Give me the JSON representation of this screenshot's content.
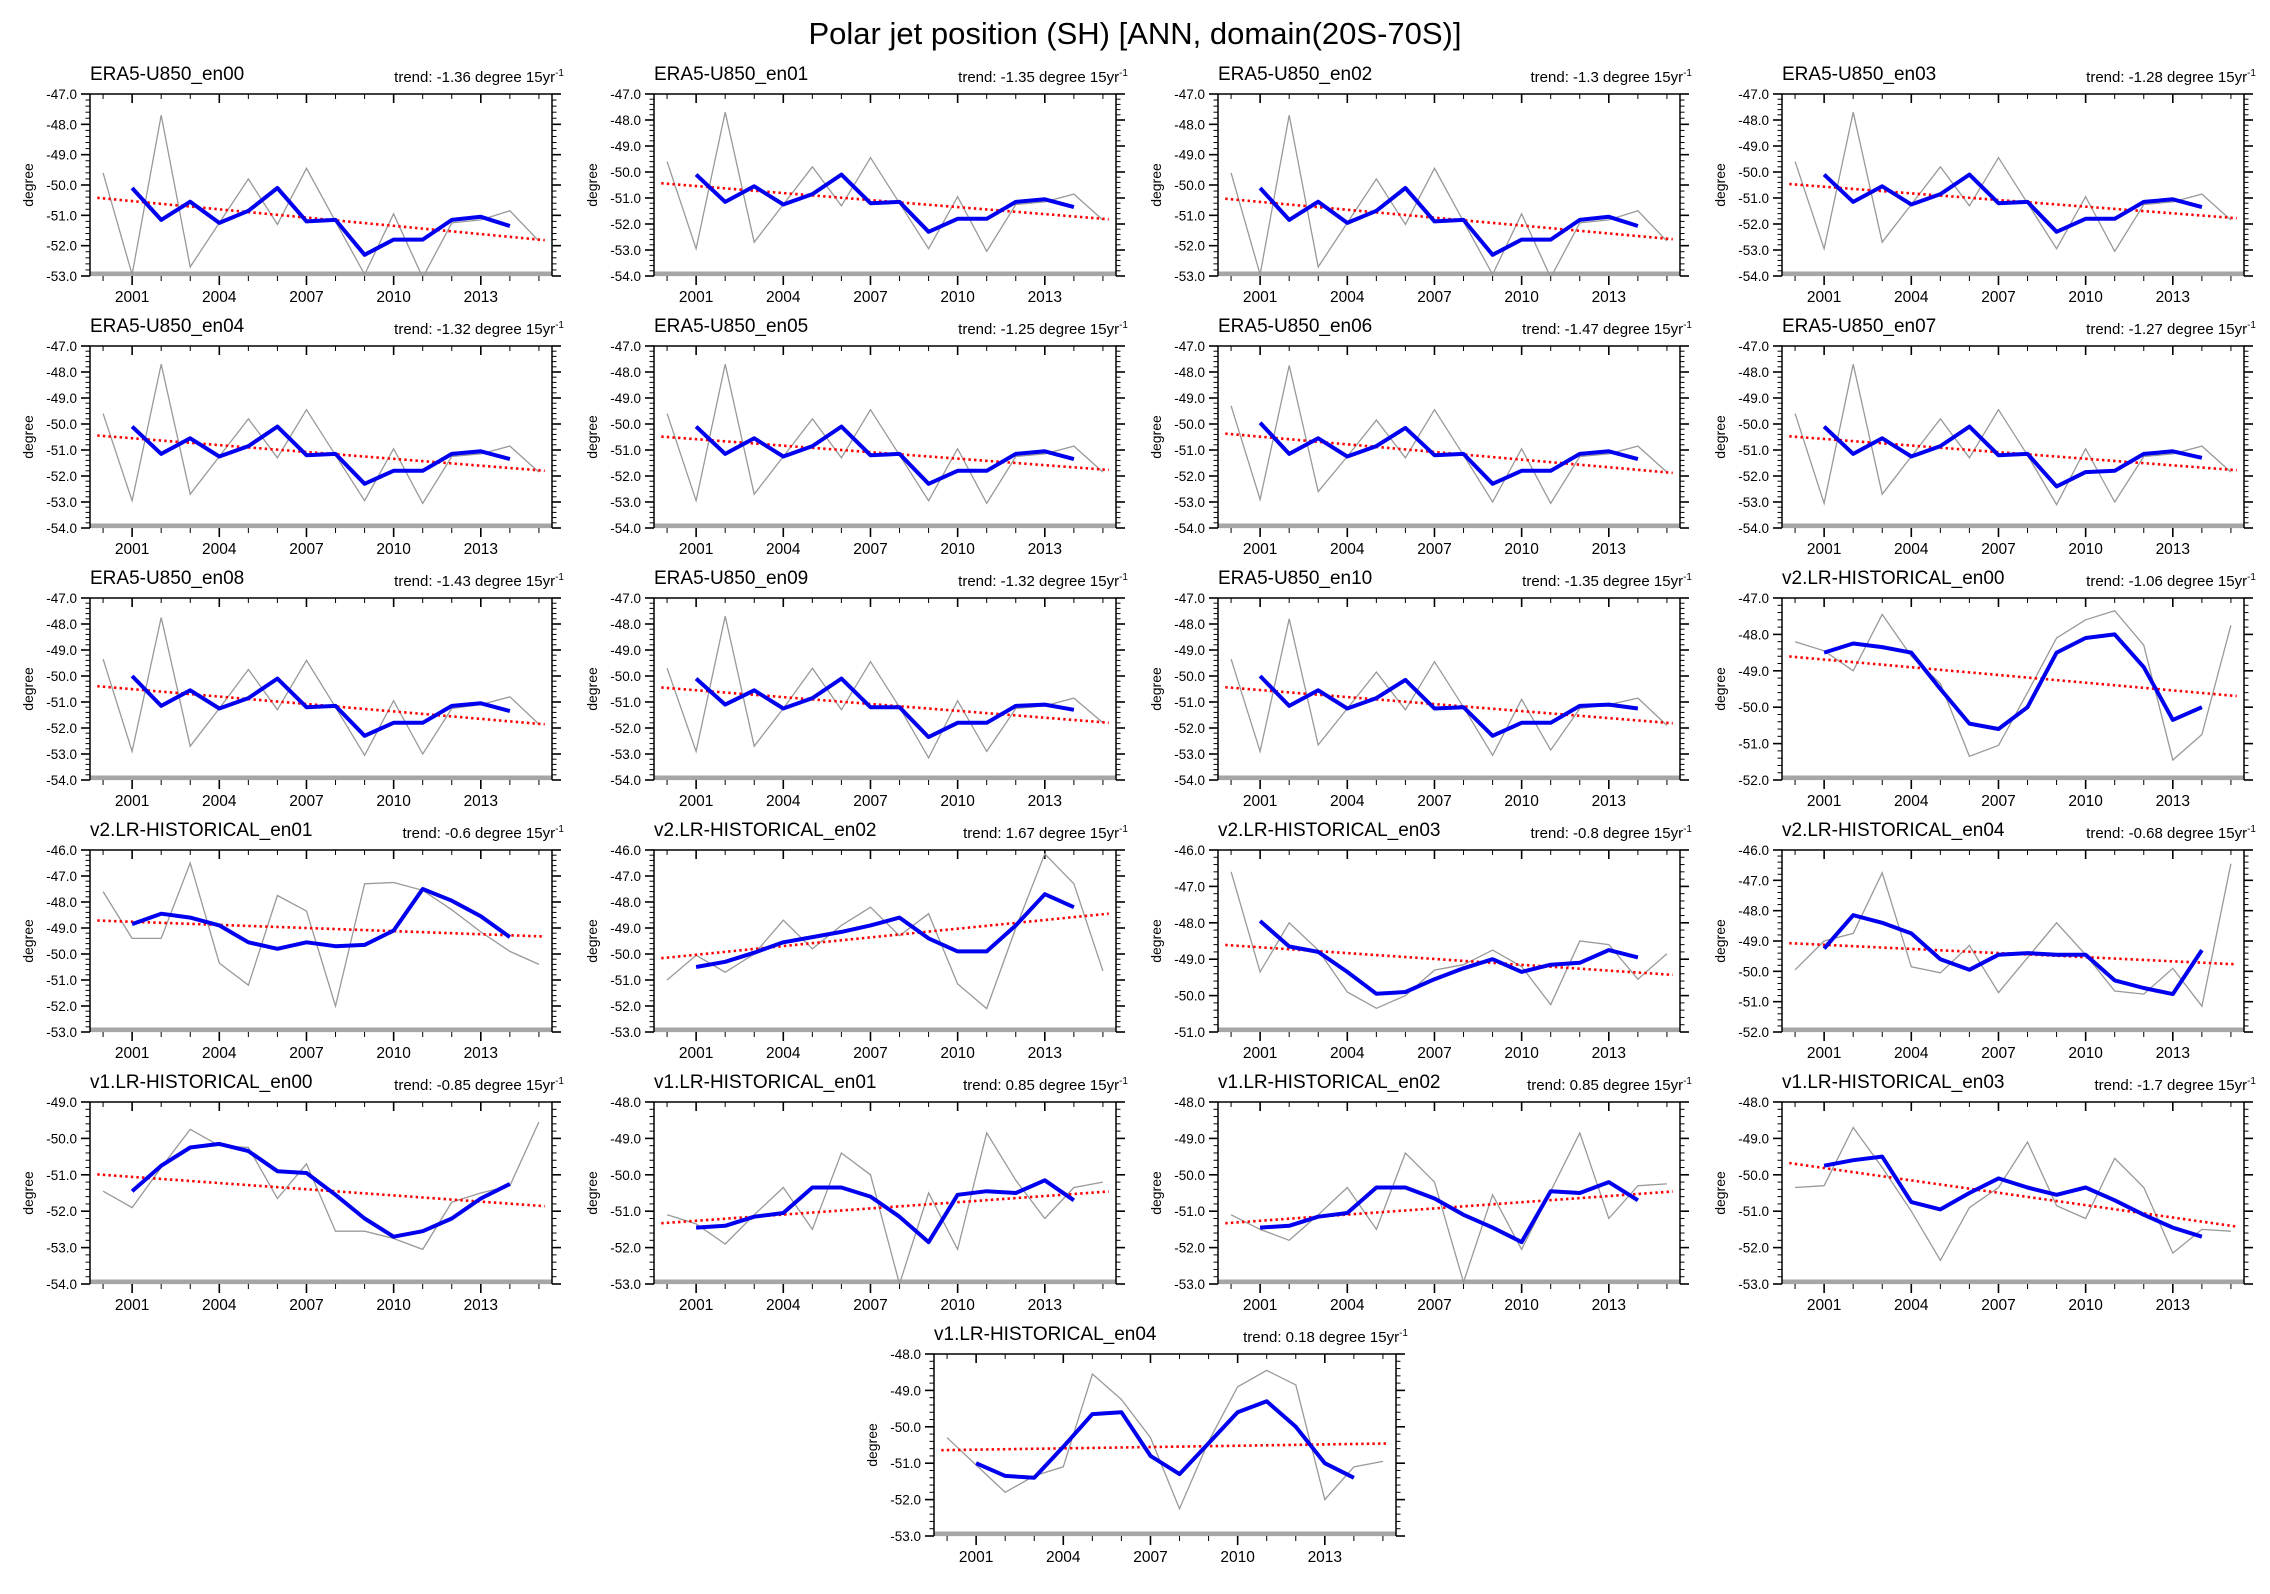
{
  "title": "Polar jet position (SH) [ANN, domain(20S-70S)]",
  "axes": {
    "ylabel": "degree",
    "x_major_ticks": [
      2001,
      2004,
      2007,
      2010,
      2013
    ],
    "x_range": [
      2000,
      2015
    ],
    "trend_prefix": "trend:",
    "trend_unit": "degree 15yr",
    "trend_sup": "-1"
  },
  "colors": {
    "annual_line": "#999999",
    "smoothed_line": "#0000ee",
    "trend_line": "#ff0000",
    "axis": "#000000",
    "baseline_band": "#a6a6a6"
  },
  "chart_data": [
    {
      "type": "line",
      "title": "ERA5-U850_en00",
      "trend": "-1.36",
      "ylim": [
        -53,
        -47
      ],
      "annual_start_year": 2000,
      "annual": [
        -49.6,
        -52.95,
        -47.7,
        -52.7,
        -51.25,
        -49.8,
        -51.3,
        -49.45,
        -51.2,
        -52.95,
        -50.95,
        -53.05,
        -51.25,
        -51.15,
        -50.85,
        -51.85
      ],
      "smoothed_start_year": 2001,
      "smoothed": [
        -50.1,
        -51.15,
        -50.55,
        -51.25,
        -50.85,
        -50.1,
        -51.2,
        -51.15,
        -52.3,
        -51.8,
        -51.8,
        -51.15,
        -51.05,
        -51.35
      ],
      "trend_endpoints": [
        -50.44,
        -51.8
      ]
    },
    {
      "type": "line",
      "title": "ERA5-U850_en01",
      "trend": "-1.35",
      "ylim": [
        -54,
        -47
      ],
      "annual_start_year": 2000,
      "annual": [
        -49.6,
        -52.95,
        -47.7,
        -52.7,
        -51.25,
        -49.8,
        -51.3,
        -49.45,
        -51.2,
        -52.95,
        -50.95,
        -53.05,
        -51.25,
        -51.15,
        -50.85,
        -51.85
      ],
      "smoothed_start_year": 2001,
      "smoothed": [
        -50.1,
        -51.15,
        -50.55,
        -51.25,
        -50.85,
        -50.1,
        -51.2,
        -51.15,
        -52.3,
        -51.8,
        -51.8,
        -51.15,
        -51.05,
        -51.35
      ],
      "trend_endpoints": [
        -50.45,
        -51.8
      ]
    },
    {
      "type": "line",
      "title": "ERA5-U850_en02",
      "trend": "-1.3",
      "ylim": [
        -53,
        -47
      ],
      "annual_start_year": 2000,
      "annual": [
        -49.6,
        -52.95,
        -47.7,
        -52.7,
        -51.25,
        -49.8,
        -51.3,
        -49.45,
        -51.2,
        -52.95,
        -50.95,
        -53.05,
        -51.25,
        -51.15,
        -50.85,
        -51.85
      ],
      "smoothed_start_year": 2001,
      "smoothed": [
        -50.1,
        -51.15,
        -50.55,
        -51.25,
        -50.85,
        -50.1,
        -51.2,
        -51.15,
        -52.3,
        -51.8,
        -51.8,
        -51.15,
        -51.05,
        -51.35
      ],
      "trend_endpoints": [
        -50.47,
        -51.77
      ]
    },
    {
      "type": "line",
      "title": "ERA5-U850_en03",
      "trend": "-1.28",
      "ylim": [
        -54,
        -47
      ],
      "annual_start_year": 2000,
      "annual": [
        -49.6,
        -52.95,
        -47.7,
        -52.7,
        -51.25,
        -49.8,
        -51.3,
        -49.45,
        -51.2,
        -52.95,
        -50.95,
        -53.05,
        -51.25,
        -51.15,
        -50.85,
        -51.85
      ],
      "smoothed_start_year": 2001,
      "smoothed": [
        -50.1,
        -51.15,
        -50.55,
        -51.25,
        -50.85,
        -50.1,
        -51.2,
        -51.15,
        -52.3,
        -51.8,
        -51.8,
        -51.15,
        -51.05,
        -51.35
      ],
      "trend_endpoints": [
        -50.48,
        -51.76
      ]
    },
    {
      "type": "line",
      "title": "ERA5-U850_en04",
      "trend": "-1.32",
      "ylim": [
        -54,
        -47
      ],
      "annual_start_year": 2000,
      "annual": [
        -49.6,
        -52.95,
        -47.7,
        -52.7,
        -51.25,
        -49.8,
        -51.3,
        -49.45,
        -51.2,
        -52.95,
        -50.95,
        -53.05,
        -51.25,
        -51.15,
        -50.85,
        -51.85
      ],
      "smoothed_start_year": 2001,
      "smoothed": [
        -50.1,
        -51.15,
        -50.55,
        -51.25,
        -50.85,
        -50.1,
        -51.2,
        -51.15,
        -52.3,
        -51.8,
        -51.8,
        -51.15,
        -51.05,
        -51.35
      ],
      "trend_endpoints": [
        -50.46,
        -51.78
      ]
    },
    {
      "type": "line",
      "title": "ERA5-U850_en05",
      "trend": "-1.25",
      "ylim": [
        -54,
        -47
      ],
      "annual_start_year": 2000,
      "annual": [
        -49.6,
        -52.95,
        -47.7,
        -52.7,
        -51.25,
        -49.8,
        -51.3,
        -49.45,
        -51.2,
        -52.95,
        -50.95,
        -53.05,
        -51.25,
        -51.15,
        -50.85,
        -51.85
      ],
      "smoothed_start_year": 2001,
      "smoothed": [
        -50.1,
        -51.15,
        -50.55,
        -51.25,
        -50.85,
        -50.1,
        -51.2,
        -51.15,
        -52.3,
        -51.8,
        -51.8,
        -51.15,
        -51.05,
        -51.35
      ],
      "trend_endpoints": [
        -50.5,
        -51.75
      ]
    },
    {
      "type": "line",
      "title": "ERA5-U850_en06",
      "trend": "-1.47",
      "ylim": [
        -54,
        -47
      ],
      "annual_start_year": 2000,
      "annual": [
        -49.3,
        -52.9,
        -47.75,
        -52.6,
        -51.25,
        -49.85,
        -51.3,
        -49.45,
        -51.2,
        -53.0,
        -50.95,
        -53.05,
        -51.25,
        -51.15,
        -50.85,
        -51.85
      ],
      "smoothed_start_year": 2001,
      "smoothed": [
        -49.95,
        -51.15,
        -50.55,
        -51.25,
        -50.85,
        -50.15,
        -51.2,
        -51.15,
        -52.3,
        -51.8,
        -51.8,
        -51.15,
        -51.05,
        -51.35
      ],
      "trend_endpoints": [
        -50.39,
        -51.86
      ]
    },
    {
      "type": "line",
      "title": "ERA5-U850_en07",
      "trend": "-1.27",
      "ylim": [
        -54,
        -47
      ],
      "annual_start_year": 2000,
      "annual": [
        -49.6,
        -53.05,
        -47.7,
        -52.7,
        -51.25,
        -49.8,
        -51.3,
        -49.45,
        -51.2,
        -53.1,
        -50.95,
        -53.0,
        -51.25,
        -51.15,
        -50.85,
        -51.85
      ],
      "smoothed_start_year": 2001,
      "smoothed": [
        -50.1,
        -51.15,
        -50.55,
        -51.25,
        -50.85,
        -50.1,
        -51.2,
        -51.15,
        -52.4,
        -51.85,
        -51.8,
        -51.15,
        -51.05,
        -51.3
      ],
      "trend_endpoints": [
        -50.49,
        -51.76
      ]
    },
    {
      "type": "line",
      "title": "ERA5-U850_en08",
      "trend": "-1.43",
      "ylim": [
        -54,
        -47
      ],
      "annual_start_year": 2000,
      "annual": [
        -49.35,
        -52.9,
        -47.75,
        -52.7,
        -51.25,
        -49.75,
        -51.3,
        -49.4,
        -51.2,
        -53.05,
        -50.95,
        -53.0,
        -51.25,
        -51.1,
        -50.8,
        -51.85
      ],
      "smoothed_start_year": 2001,
      "smoothed": [
        -50.0,
        -51.15,
        -50.55,
        -51.25,
        -50.85,
        -50.1,
        -51.2,
        -51.15,
        -52.3,
        -51.8,
        -51.8,
        -51.15,
        -51.05,
        -51.35
      ],
      "trend_endpoints": [
        -50.41,
        -51.84
      ]
    },
    {
      "type": "line",
      "title": "ERA5-U850_en09",
      "trend": "-1.32",
      "ylim": [
        -54,
        -47
      ],
      "annual_start_year": 2000,
      "annual": [
        -49.7,
        -52.9,
        -47.7,
        -52.7,
        -51.25,
        -49.7,
        -51.3,
        -49.45,
        -51.2,
        -53.15,
        -50.95,
        -52.9,
        -51.25,
        -51.15,
        -50.85,
        -51.8
      ],
      "smoothed_start_year": 2001,
      "smoothed": [
        -50.1,
        -51.1,
        -50.55,
        -51.25,
        -50.85,
        -50.1,
        -51.2,
        -51.2,
        -52.35,
        -51.8,
        -51.8,
        -51.15,
        -51.1,
        -51.3
      ],
      "trend_endpoints": [
        -50.46,
        -51.78
      ]
    },
    {
      "type": "line",
      "title": "ERA5-U850_en10",
      "trend": "-1.35",
      "ylim": [
        -54,
        -47
      ],
      "annual_start_year": 2000,
      "annual": [
        -49.35,
        -52.9,
        -47.8,
        -52.65,
        -51.25,
        -49.85,
        -51.3,
        -49.45,
        -51.2,
        -53.05,
        -50.9,
        -52.85,
        -51.25,
        -51.1,
        -50.85,
        -51.9
      ],
      "smoothed_start_year": 2001,
      "smoothed": [
        -50.0,
        -51.15,
        -50.55,
        -51.25,
        -50.85,
        -50.15,
        -51.25,
        -51.2,
        -52.3,
        -51.8,
        -51.8,
        -51.15,
        -51.1,
        -51.25
      ],
      "trend_endpoints": [
        -50.45,
        -51.8
      ]
    },
    {
      "type": "line",
      "title": "v2.LR-HISTORICAL_en00",
      "trend": "-1.06",
      "ylim": [
        -52,
        -47
      ],
      "annual_start_year": 2000,
      "annual": [
        -48.2,
        -48.45,
        -49.0,
        -47.45,
        -48.6,
        -49.35,
        -51.35,
        -51.05,
        -49.6,
        -48.1,
        -47.6,
        -47.35,
        -48.3,
        -51.45,
        -50.75,
        -47.75
      ],
      "smoothed_start_year": 2001,
      "smoothed": [
        -48.5,
        -48.25,
        -48.35,
        -48.5,
        -49.5,
        -50.45,
        -50.6,
        -50.0,
        -48.5,
        -48.1,
        -48.0,
        -48.9,
        -50.35,
        -50.0
      ],
      "trend_endpoints": [
        -48.62,
        -49.68
      ]
    },
    {
      "type": "line",
      "title": "v2.LR-HISTORICAL_en01",
      "trend": "-0.6",
      "ylim": [
        -53,
        -46
      ],
      "annual_start_year": 2000,
      "annual": [
        -47.6,
        -49.4,
        -49.4,
        -46.5,
        -50.35,
        -51.2,
        -47.75,
        -48.35,
        -52.0,
        -47.3,
        -47.25,
        -47.55,
        -48.3,
        -49.15,
        -49.9,
        -50.4
      ],
      "smoothed_start_year": 2001,
      "smoothed": [
        -48.85,
        -48.45,
        -48.6,
        -48.9,
        -49.55,
        -49.8,
        -49.55,
        -49.7,
        -49.65,
        -49.1,
        -47.5,
        -47.95,
        -48.55,
        -49.35
      ],
      "trend_endpoints": [
        -48.72,
        -49.32
      ]
    },
    {
      "type": "line",
      "title": "v2.LR-HISTORICAL_en02",
      "trend": "1.67",
      "ylim": [
        -53,
        -46
      ],
      "annual_start_year": 2000,
      "annual": [
        -51.0,
        -50.05,
        -50.7,
        -50.0,
        -48.7,
        -49.8,
        -48.9,
        -48.2,
        -49.3,
        -48.45,
        -51.15,
        -52.1,
        -49.0,
        -46.15,
        -47.3,
        -50.65
      ],
      "smoothed_start_year": 2001,
      "smoothed": [
        -50.5,
        -50.3,
        -49.95,
        -49.55,
        -49.35,
        -49.15,
        -48.9,
        -48.6,
        -49.4,
        -49.9,
        -49.9,
        -48.9,
        -47.7,
        -48.2
      ],
      "trend_endpoints": [
        -50.14,
        -48.47
      ]
    },
    {
      "type": "line",
      "title": "v2.LR-HISTORICAL_en03",
      "trend": "-0.8",
      "ylim": [
        -51,
        -46
      ],
      "annual_start_year": 2000,
      "annual": [
        -46.6,
        -49.35,
        -48.0,
        -48.75,
        -49.9,
        -50.35,
        -50.0,
        -49.3,
        -49.15,
        -48.75,
        -49.2,
        -50.25,
        -48.5,
        -48.6,
        -49.55,
        -48.85
      ],
      "smoothed_start_year": 2001,
      "smoothed": [
        -47.95,
        -48.65,
        -48.8,
        -49.35,
        -49.95,
        -49.9,
        -49.55,
        -49.25,
        -49.0,
        -49.35,
        -49.15,
        -49.1,
        -48.75,
        -48.95
      ],
      "trend_endpoints": [
        -48.62,
        -49.42
      ]
    },
    {
      "type": "line",
      "title": "v2.LR-HISTORICAL_en04",
      "trend": "-0.68",
      "ylim": [
        -52,
        -46
      ],
      "annual_start_year": 2000,
      "annual": [
        -49.95,
        -49.0,
        -48.75,
        -46.75,
        -49.85,
        -50.05,
        -49.15,
        -50.7,
        -49.55,
        -48.4,
        -49.45,
        -50.65,
        -50.75,
        -49.9,
        -51.15,
        -46.45
      ],
      "smoothed_start_year": 2001,
      "smoothed": [
        -49.25,
        -48.15,
        -48.4,
        -48.75,
        -49.6,
        -49.95,
        -49.45,
        -49.4,
        -49.45,
        -49.45,
        -50.3,
        -50.55,
        -50.75,
        -49.3
      ],
      "trend_endpoints": [
        -49.08,
        -49.76
      ]
    },
    {
      "type": "line",
      "title": "v1.LR-HISTORICAL_en00",
      "trend": "-0.85",
      "ylim": [
        -54,
        -49
      ],
      "annual_start_year": 2000,
      "annual": [
        -51.45,
        -51.9,
        -50.8,
        -49.75,
        -50.2,
        -50.25,
        -51.65,
        -50.7,
        -52.55,
        -52.55,
        -52.75,
        -53.05,
        -51.75,
        -51.5,
        -51.3,
        -49.55
      ],
      "smoothed_start_year": 2001,
      "smoothed": [
        -51.45,
        -50.75,
        -50.25,
        -50.15,
        -50.35,
        -50.9,
        -50.95,
        -51.55,
        -52.2,
        -52.7,
        -52.55,
        -52.2,
        -51.65,
        -51.25
      ],
      "trend_endpoints": [
        -51.0,
        -51.85
      ]
    },
    {
      "type": "line",
      "title": "v1.LR-HISTORICAL_en01",
      "trend": "0.85",
      "ylim": [
        -53,
        -48
      ],
      "annual_start_year": 2000,
      "annual": [
        -51.1,
        -51.35,
        -51.9,
        -51.1,
        -50.35,
        -51.5,
        -49.4,
        -50.0,
        -53.0,
        -50.5,
        -52.05,
        -48.85,
        -50.15,
        -51.2,
        -50.35,
        -50.2
      ],
      "smoothed_start_year": 2001,
      "smoothed": [
        -51.45,
        -51.4,
        -51.15,
        -51.05,
        -50.35,
        -50.35,
        -50.6,
        -51.15,
        -51.85,
        -50.55,
        -50.45,
        -50.5,
        -50.15,
        -50.7
      ],
      "trend_endpoints": [
        -51.32,
        -50.47
      ]
    },
    {
      "type": "line",
      "title": "v1.LR-HISTORICAL_en02",
      "trend": "0.85",
      "ylim": [
        -53,
        -48
      ],
      "annual_start_year": 2000,
      "annual": [
        -51.1,
        -51.5,
        -51.8,
        -51.1,
        -50.35,
        -51.5,
        -49.4,
        -50.2,
        -52.95,
        -50.55,
        -52.05,
        -50.45,
        -48.85,
        -51.2,
        -50.3,
        -50.25
      ],
      "smoothed_start_year": 2001,
      "smoothed": [
        -51.45,
        -51.4,
        -51.15,
        -51.05,
        -50.35,
        -50.35,
        -50.65,
        -51.1,
        -51.45,
        -51.85,
        -50.45,
        -50.5,
        -50.2,
        -50.7
      ],
      "trend_endpoints": [
        -51.32,
        -50.47
      ]
    },
    {
      "type": "line",
      "title": "v1.LR-HISTORICAL_en03",
      "trend": "-1.7",
      "ylim": [
        -53,
        -48
      ],
      "annual_start_year": 2000,
      "annual": [
        -50.35,
        -50.3,
        -48.7,
        -49.8,
        -51.0,
        -52.35,
        -50.9,
        -50.35,
        -49.1,
        -50.85,
        -51.2,
        -49.55,
        -50.35,
        -52.15,
        -51.5,
        -51.55
      ],
      "smoothed_start_year": 2001,
      "smoothed": [
        -49.75,
        -49.6,
        -49.5,
        -50.75,
        -50.95,
        -50.5,
        -50.1,
        -50.35,
        -50.55,
        -50.35,
        -50.7,
        -51.1,
        -51.45,
        -51.7
      ],
      "trend_endpoints": [
        -49.7,
        -51.4
      ]
    },
    {
      "type": "line",
      "title": "v1.LR-HISTORICAL_en04",
      "trend": "0.18",
      "ylim": [
        -53,
        -48
      ],
      "annual_start_year": 2000,
      "annual": [
        -50.3,
        -51.05,
        -51.8,
        -51.35,
        -51.1,
        -48.55,
        -49.25,
        -50.3,
        -52.25,
        -50.4,
        -48.9,
        -48.45,
        -48.85,
        -52.0,
        -51.1,
        -50.95
      ],
      "smoothed_start_year": 2001,
      "smoothed": [
        -51.0,
        -51.35,
        -51.4,
        -50.55,
        -49.65,
        -49.6,
        -50.8,
        -51.3,
        -50.45,
        -49.6,
        -49.3,
        -50.0,
        -51.0,
        -51.4
      ],
      "trend_endpoints": [
        -50.64,
        -50.46
      ]
    }
  ]
}
